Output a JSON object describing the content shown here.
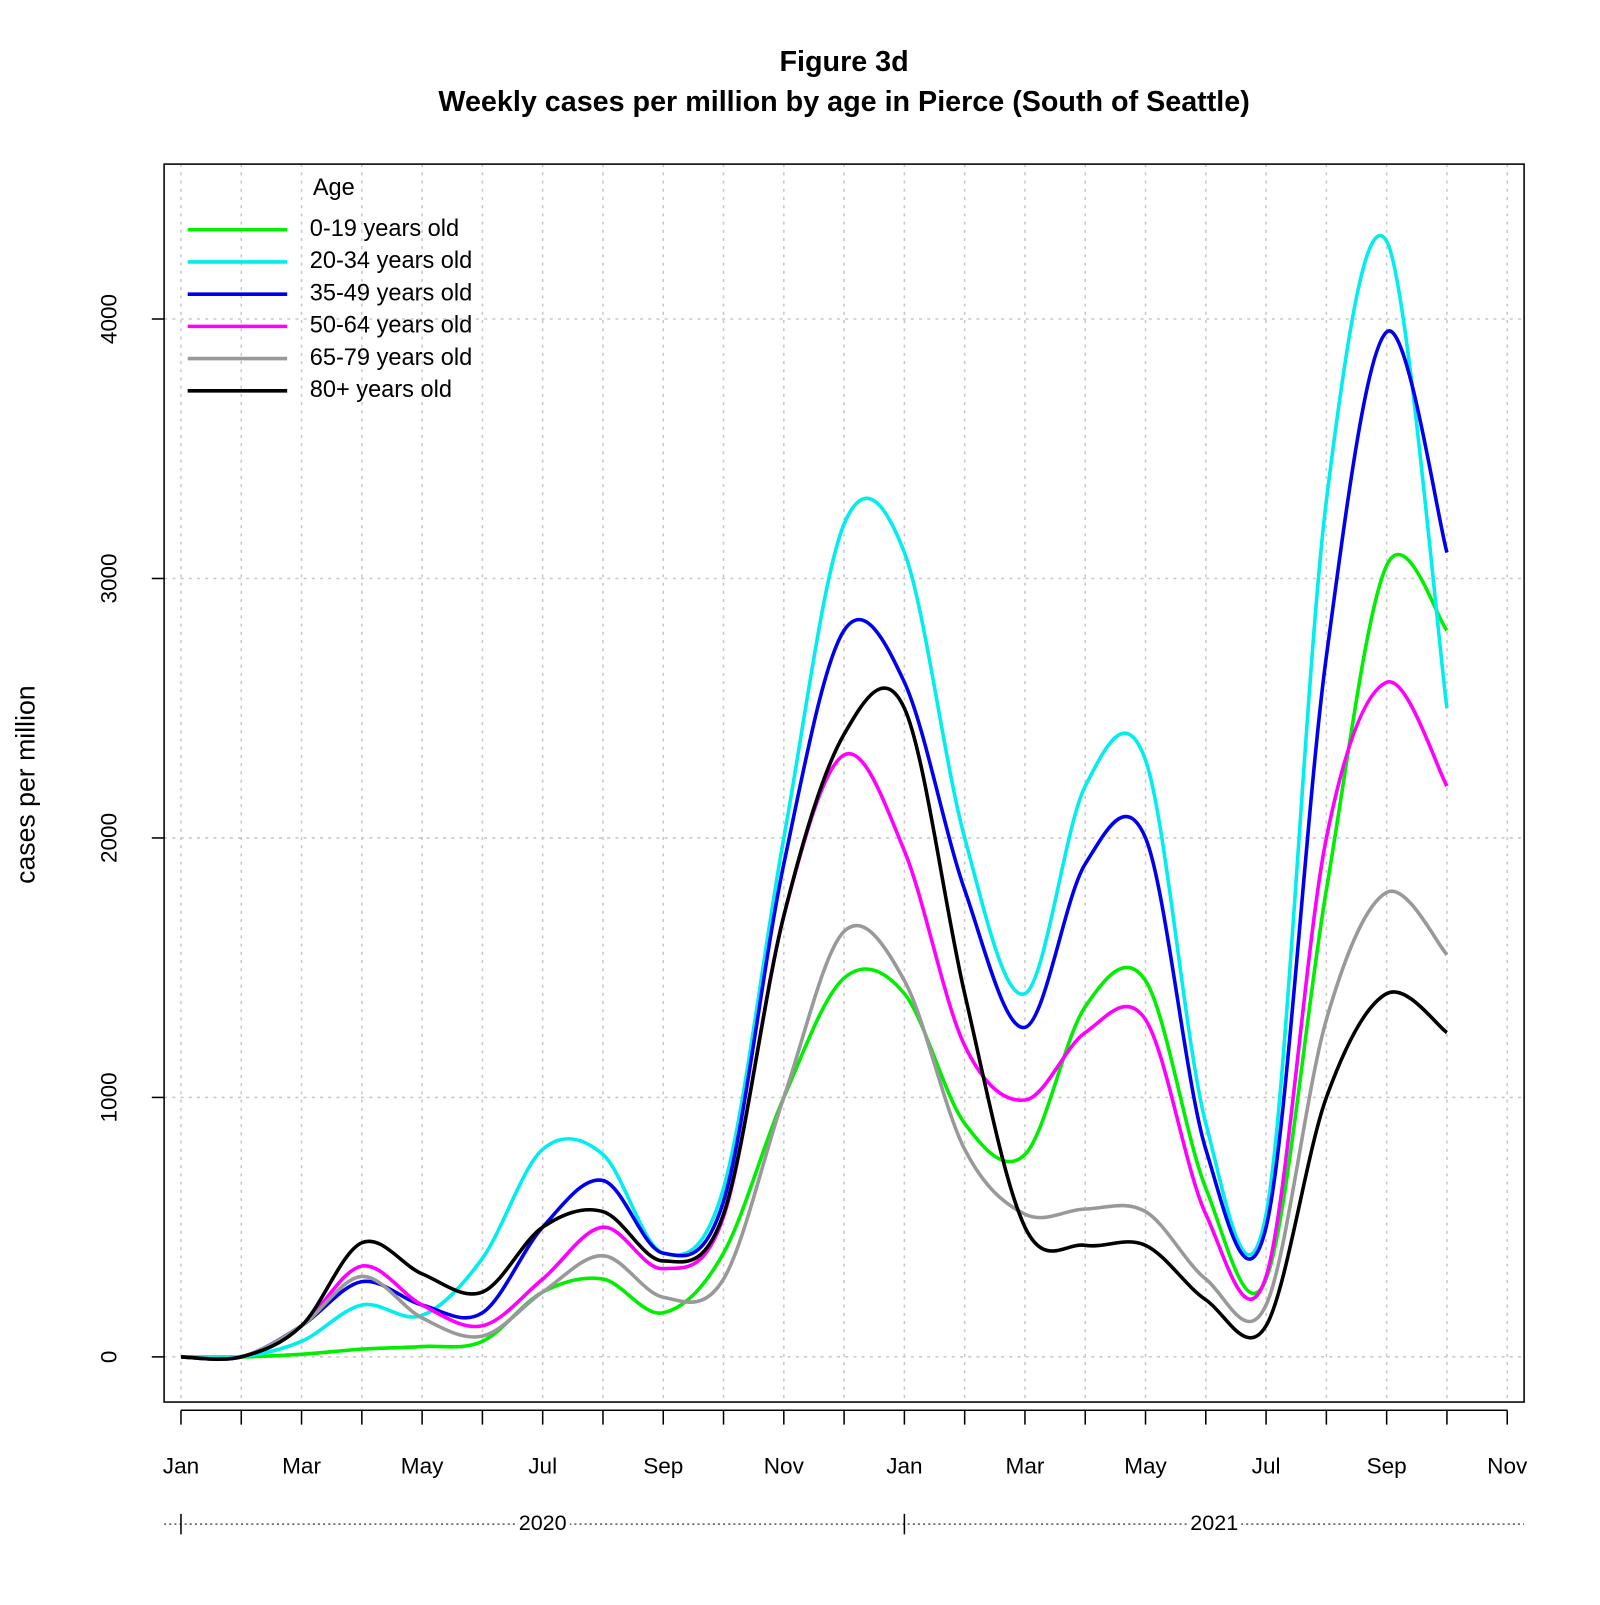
{
  "chart_data": {
    "type": "line",
    "title": "Figure 3d",
    "subtitle": "Weekly cases per million by age in Pierce (South of Seattle)",
    "y_label": "cases per million",
    "legend_title": "Age",
    "legend": "top-left",
    "grid": true,
    "x": [
      "2020-01",
      "2020-02",
      "2020-03",
      "2020-04",
      "2020-05",
      "2020-06",
      "2020-07",
      "2020-08",
      "2020-09",
      "2020-10",
      "2020-11",
      "2020-12",
      "2021-01",
      "2021-02",
      "2021-03",
      "2021-04",
      "2021-05",
      "2021-06",
      "2021-07",
      "2021-08",
      "2021-09",
      "2021-10"
    ],
    "xlim": [
      "2020-01",
      "2021-11"
    ],
    "xticks": [
      {
        "value": "2020-01",
        "label": "Jan"
      },
      {
        "value": "2020-03",
        "label": "Mar"
      },
      {
        "value": "2020-05",
        "label": "May"
      },
      {
        "value": "2020-07",
        "label": "Jul"
      },
      {
        "value": "2020-09",
        "label": "Sep"
      },
      {
        "value": "2020-11",
        "label": "Nov"
      },
      {
        "value": "2021-01",
        "label": "Jan"
      },
      {
        "value": "2021-03",
        "label": "Mar"
      },
      {
        "value": "2021-05",
        "label": "May"
      },
      {
        "value": "2021-07",
        "label": "Jul"
      },
      {
        "value": "2021-09",
        "label": "Sep"
      },
      {
        "value": "2021-11",
        "label": "Nov"
      }
    ],
    "year_ticks": [
      {
        "value": "2020-01",
        "label": "2020"
      },
      {
        "value": "2021-01",
        "label": "2021"
      }
    ],
    "ylim": [
      -174,
      4597
    ],
    "yticks": [
      0,
      1000,
      2000,
      3000,
      4000
    ],
    "series": [
      {
        "name": "0-19 years old",
        "color": "#00ee00",
        "values": [
          0,
          0,
          10,
          30,
          40,
          60,
          250,
          300,
          170,
          400,
          1000,
          1460,
          1400,
          900,
          780,
          1350,
          1450,
          650,
          300,
          1800,
          3050,
          2800
        ]
      },
      {
        "name": "20-34 years old",
        "color": "#00eeee",
        "values": [
          0,
          0,
          60,
          200,
          160,
          380,
          800,
          780,
          400,
          650,
          2000,
          3210,
          3100,
          2000,
          1400,
          2200,
          2300,
          900,
          550,
          3300,
          4300,
          2500
        ]
      },
      {
        "name": "35-49 years old",
        "color": "#0000ee",
        "values": [
          0,
          0,
          120,
          290,
          200,
          170,
          500,
          680,
          400,
          600,
          1900,
          2800,
          2600,
          1800,
          1270,
          1900,
          2000,
          800,
          500,
          2700,
          3950,
          3100
        ]
      },
      {
        "name": "50-64 years old",
        "color": "#ff00ff",
        "values": [
          0,
          0,
          120,
          350,
          200,
          120,
          300,
          500,
          340,
          540,
          1700,
          2320,
          1950,
          1200,
          990,
          1250,
          1300,
          550,
          310,
          2000,
          2600,
          2200
        ]
      },
      {
        "name": "65-79 years old",
        "color": "#999999",
        "values": [
          0,
          0,
          120,
          310,
          150,
          80,
          250,
          390,
          230,
          300,
          1000,
          1640,
          1450,
          800,
          550,
          570,
          560,
          300,
          200,
          1300,
          1790,
          1550
        ]
      },
      {
        "name": "80+ years old",
        "color": "#000000",
        "values": [
          0,
          0,
          120,
          440,
          320,
          250,
          500,
          560,
          370,
          550,
          1700,
          2400,
          2500,
          1400,
          500,
          430,
          430,
          220,
          120,
          1000,
          1400,
          1250
        ]
      }
    ]
  }
}
